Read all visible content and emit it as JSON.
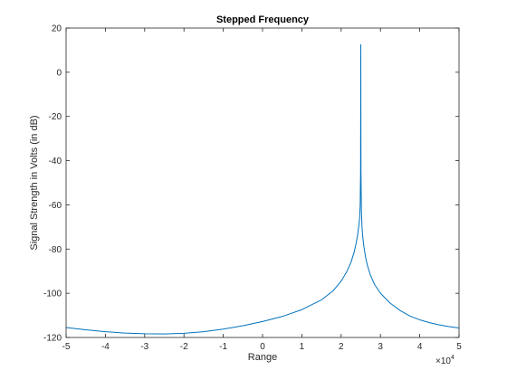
{
  "chart_data": {
    "type": "line",
    "title": "Stepped Frequency",
    "xlabel": "Range",
    "ylabel": "Signal Strength in Volts (in dB)",
    "x_exponent_label": "×10",
    "x_exponent_power": "4",
    "xlim": [
      -50000,
      50000
    ],
    "ylim": [
      -120,
      20
    ],
    "x_ticks": [
      -50000,
      -40000,
      -30000,
      -20000,
      -10000,
      0,
      10000,
      20000,
      30000,
      40000,
      50000
    ],
    "x_tick_labels": [
      "-5",
      "-4",
      "-3",
      "-2",
      "-1",
      "0",
      "1",
      "2",
      "3",
      "4",
      "5"
    ],
    "y_ticks": [
      20,
      0,
      -20,
      -40,
      -60,
      -80,
      -100,
      -120
    ],
    "y_tick_labels": [
      "20",
      "0",
      "-20",
      "-40",
      "-60",
      "-80",
      "-100",
      "-120"
    ],
    "grid": false,
    "series": [
      {
        "color": "#0072BD",
        "x": [
          -50000,
          -45000,
          -40000,
          -35000,
          -30000,
          -25000,
          -20000,
          -15000,
          -10000,
          -5000,
          0,
          5000,
          10000,
          15000,
          18000,
          20000,
          21500,
          22500,
          23300,
          23800,
          24200,
          24500,
          24700,
          24850,
          24950,
          25000,
          25050,
          25150,
          25300,
          25500,
          25800,
          26200,
          26700,
          27500,
          28500,
          30000,
          32500,
          35000,
          37500,
          40000,
          42500,
          45000,
          47500,
          50000
        ],
        "y": [
          -115.5,
          -116.5,
          -117.4,
          -118.0,
          -118.3,
          -118.4,
          -118.1,
          -117.4,
          -116.2,
          -114.7,
          -112.8,
          -110.5,
          -107.4,
          -103.0,
          -98.8,
          -94.5,
          -90.0,
          -86.0,
          -81.5,
          -77.5,
          -73.5,
          -69.5,
          -66.0,
          -60.0,
          -45.0,
          12.5,
          -45.0,
          -62.0,
          -69.5,
          -74.5,
          -79.0,
          -83.5,
          -87.5,
          -92.0,
          -96.0,
          -100.0,
          -104.5,
          -107.8,
          -110.3,
          -112.0,
          -113.3,
          -114.3,
          -115.1,
          -115.7
        ]
      }
    ]
  }
}
